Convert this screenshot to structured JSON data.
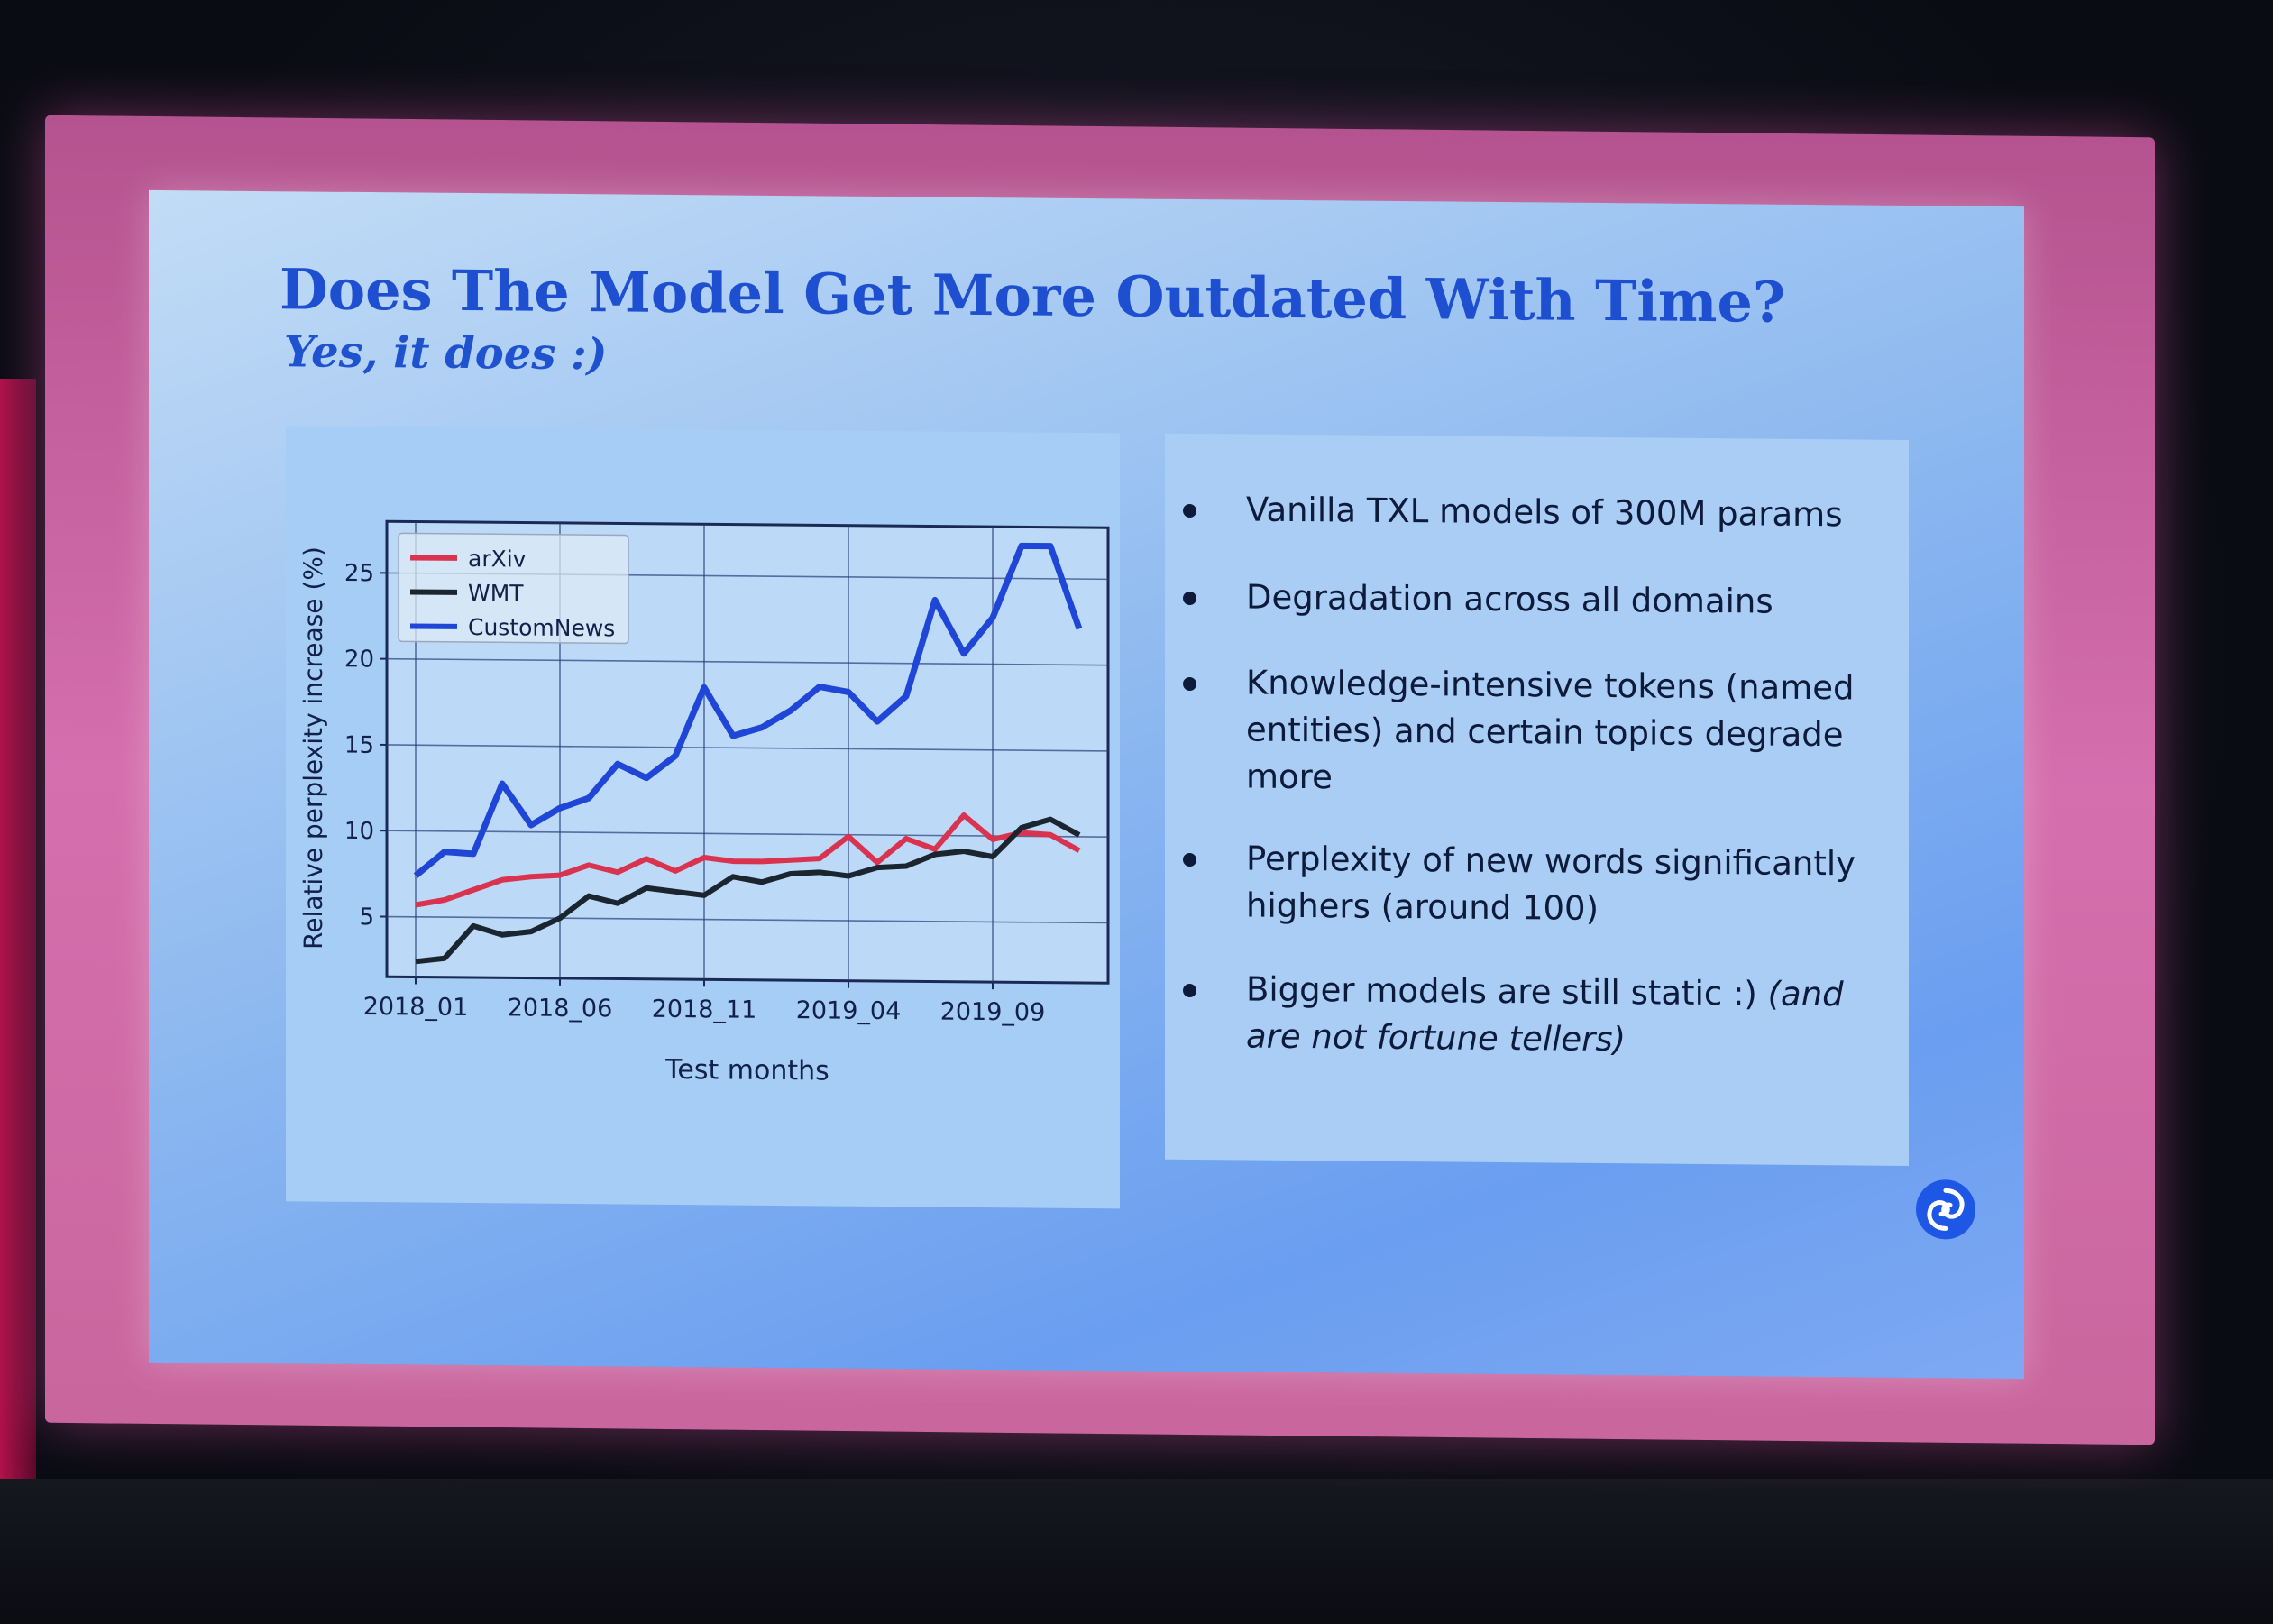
{
  "slide": {
    "title": "Does The Model Get More Outdated With Time?",
    "subtitle": "Yes, it does :)"
  },
  "chart_data": {
    "type": "line",
    "xlabel": "Test months",
    "ylabel": "Relative perplexity increase (%)",
    "x": [
      "2018_01",
      "2018_02",
      "2018_03",
      "2018_04",
      "2018_05",
      "2018_06",
      "2018_07",
      "2018_08",
      "2018_09",
      "2018_10",
      "2018_11",
      "2018_12",
      "2019_01",
      "2019_02",
      "2019_03",
      "2019_04",
      "2019_05",
      "2019_06",
      "2019_07",
      "2019_08",
      "2019_09",
      "2019_10",
      "2019_11",
      "2019_12"
    ],
    "xticks": [
      "2018_01",
      "2018_06",
      "2018_11",
      "2019_04",
      "2019_09"
    ],
    "yticks": [
      5,
      10,
      15,
      20,
      25
    ],
    "ylim": [
      1.5,
      28
    ],
    "grid": true,
    "legend_position": "top-left",
    "series": [
      {
        "name": "arXiv",
        "color": "#d9334f",
        "values": [
          5.7,
          6.0,
          6.6,
          7.2,
          7.4,
          7.5,
          8.1,
          7.7,
          8.5,
          7.8,
          8.6,
          8.4,
          8.4,
          8.5,
          8.6,
          9.9,
          8.4,
          9.8,
          9.2,
          11.2,
          9.8,
          10.2,
          10.1,
          9.2
        ]
      },
      {
        "name": "WMT",
        "color": "#1a2530",
        "values": [
          2.4,
          2.6,
          4.5,
          4.0,
          4.2,
          5.0,
          6.3,
          5.9,
          6.8,
          6.6,
          6.4,
          7.5,
          7.2,
          7.7,
          7.8,
          7.6,
          8.1,
          8.2,
          8.9,
          9.1,
          8.8,
          10.5,
          11.0,
          10.1
        ]
      },
      {
        "name": "CustomNews",
        "color": "#1f46d6",
        "values": [
          7.4,
          8.8,
          8.7,
          12.8,
          10.4,
          11.4,
          12.0,
          14.0,
          13.2,
          14.5,
          18.5,
          15.7,
          16.2,
          17.2,
          18.6,
          18.3,
          16.6,
          18.1,
          23.7,
          20.6,
          22.7,
          26.9,
          26.9,
          22.1
        ]
      }
    ]
  },
  "bullets": [
    {
      "text": "Vanilla TXL models of 300M params",
      "italic": ""
    },
    {
      "text": "Degradation across all domains",
      "italic": ""
    },
    {
      "text": "Knowledge-intensive tokens (named entities) and certain topics degrade more",
      "italic": ""
    },
    {
      "text": "Perplexity of new words significantly highers (around 100)",
      "italic": ""
    },
    {
      "text": "Bigger models are still static :) ",
      "italic": "(and are not fortune tellers)"
    }
  ],
  "logo": {
    "icon": "swirl-logo-icon",
    "color": "#1e57e6"
  }
}
